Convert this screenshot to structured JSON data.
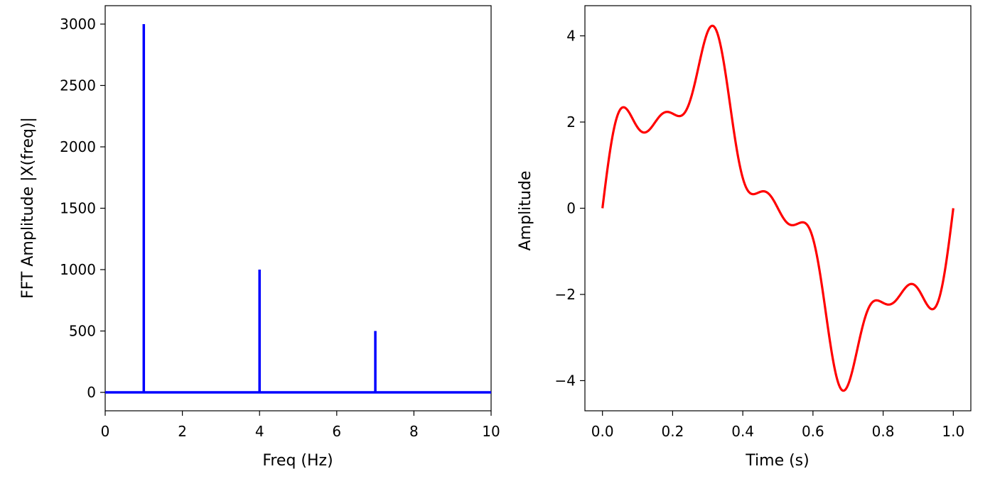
{
  "chart_data": [
    {
      "type": "bar",
      "title": "",
      "xlabel": "Freq (Hz)",
      "ylabel": "FFT Amplitude |X(freq)|",
      "xlim": [
        0,
        10
      ],
      "ylim": [
        -150,
        3150
      ],
      "xticks": [
        0,
        2,
        4,
        6,
        8,
        10
      ],
      "yticks": [
        0,
        500,
        1000,
        1500,
        2000,
        2500,
        3000
      ],
      "grid": false,
      "legend": "none",
      "color": "#0000ff",
      "baseline": 0,
      "x": [
        1,
        4,
        7
      ],
      "values": [
        3000,
        1000,
        500
      ]
    },
    {
      "type": "line",
      "title": "",
      "xlabel": "Time (s)",
      "ylabel": "Amplitude",
      "xlim": [
        -0.05,
        1.05
      ],
      "ylim": [
        -4.7,
        4.7
      ],
      "xticks": [
        0.0,
        0.2,
        0.4,
        0.6,
        0.8,
        1.0
      ],
      "yticks": [
        -4,
        -2,
        0,
        2,
        4
      ],
      "grid": false,
      "legend": "none",
      "color": "#ff0000",
      "series": [
        {
          "components": [
            {
              "amplitude": 3,
              "frequency": 1
            },
            {
              "amplitude": 1,
              "frequency": 4
            },
            {
              "amplitude": 0.5,
              "frequency": 7
            }
          ]
        }
      ]
    }
  ]
}
